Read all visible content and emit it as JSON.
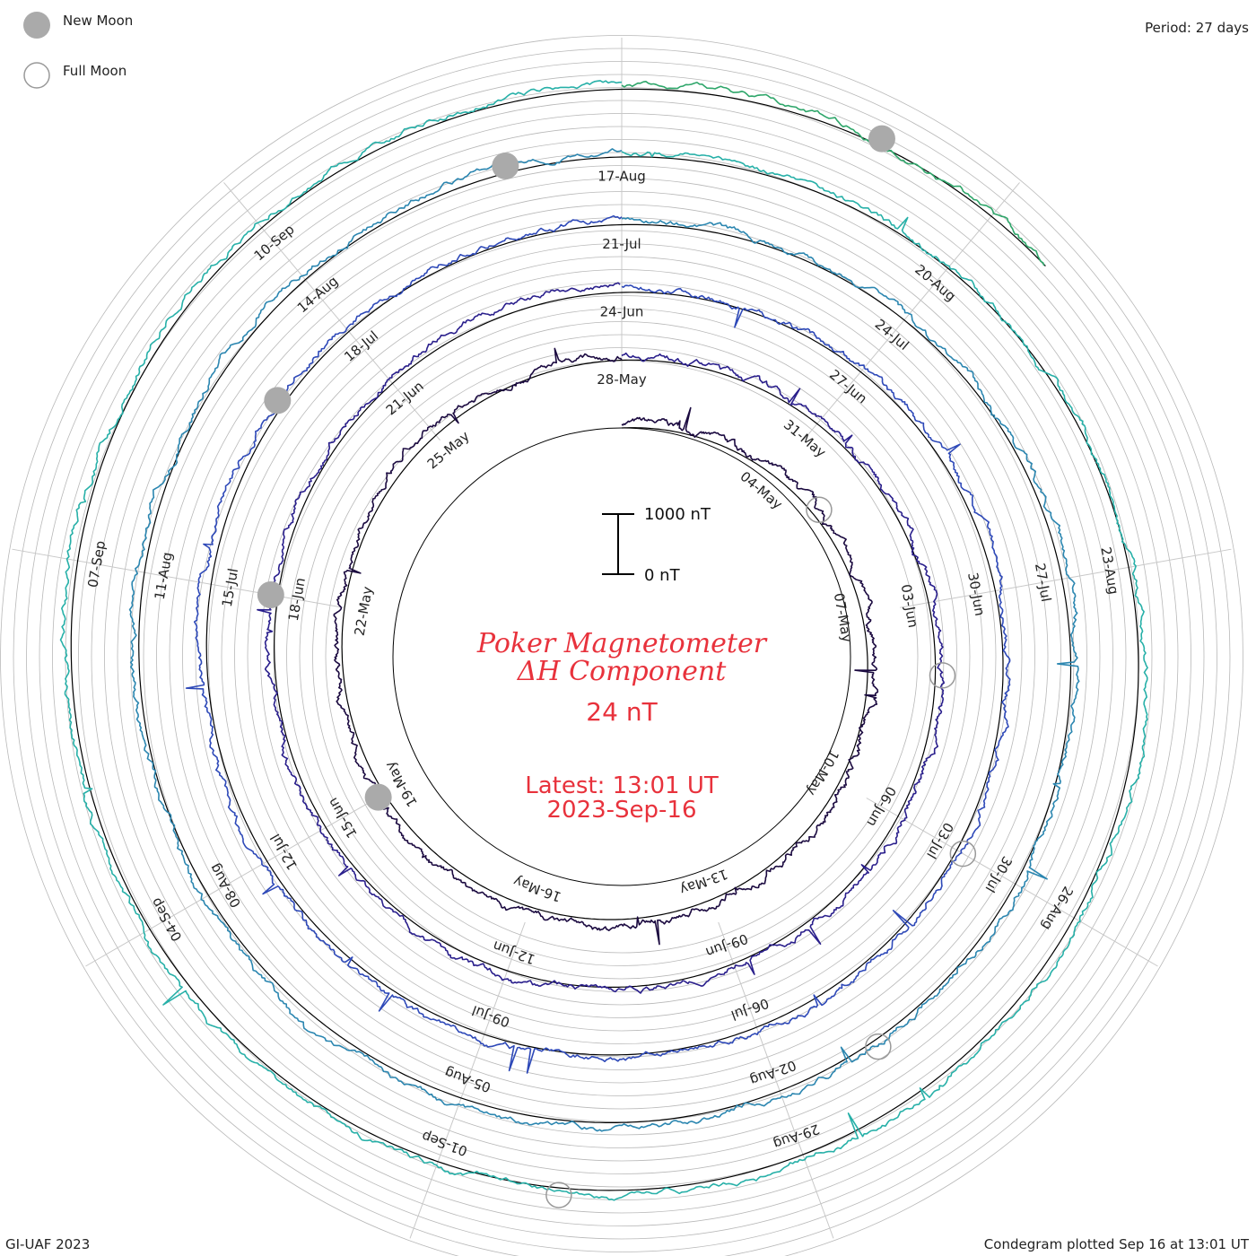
{
  "header": {
    "period": "Period: 27 days"
  },
  "legend": {
    "new_moon": "New Moon",
    "full_moon": "Full Moon"
  },
  "footer": {
    "credit": "GI-UAF 2023",
    "plotted": "Condegram plotted Sep 16 at 13:01 UT"
  },
  "center": {
    "title_line1": "Poker Magnetometer",
    "title_line2": "ΔH Component",
    "current_value": "24 nT",
    "latest_line1": "Latest: 13:01 UT",
    "latest_line2": "2023-Sep-16"
  },
  "colors": {
    "title": "#e8323c",
    "grid": "#b8b8b8",
    "moon_fill": "#aaaaaa",
    "baseline": "#000000"
  },
  "chart_data": {
    "type": "line",
    "subtype": "condegram (spiral time series)",
    "period_days": 27,
    "scale_bar": {
      "top_label": "1000 nT",
      "bottom_label": "0 nT",
      "value_nT": 1000
    },
    "start": "2023-May-01",
    "end": "2023-Sep-16 13:01 UT",
    "date_labels": [
      "04-May",
      "07-May",
      "10-May",
      "13-May",
      "16-May",
      "19-May",
      "22-May",
      "25-May",
      "28-May",
      "31-May",
      "03-Jun",
      "06-Jun",
      "09-Jun",
      "12-Jun",
      "15-Jun",
      "18-Jun",
      "21-Jun",
      "24-Jun",
      "27-Jun",
      "30-Jun",
      "03-Jul",
      "06-Jul",
      "09-Jul",
      "12-Jul",
      "15-Jul",
      "18-Jul",
      "21-Jul",
      "24-Jul",
      "27-Jul",
      "30-Jul",
      "02-Aug",
      "05-Aug",
      "08-Aug",
      "11-Aug",
      "14-Aug",
      "17-Aug",
      "20-Aug",
      "23-Aug",
      "26-Aug",
      "29-Aug",
      "01-Sep",
      "04-Sep",
      "07-Sep",
      "10-Sep"
    ],
    "series": [
      {
        "color": "#1b0a40"
      },
      {
        "color": "#2a1f8c"
      },
      {
        "color": "#2e49b8"
      },
      {
        "color": "#2b86b0"
      },
      {
        "color": "#27b0a8"
      },
      {
        "color": "#2ea66a"
      },
      {
        "color": "#6cbc3c"
      },
      {
        "color": "#a6bf28"
      },
      {
        "color": "#b09424"
      },
      {
        "color": "#c0631c"
      },
      {
        "color": "#b02a1a"
      }
    ],
    "events": [
      {
        "type": "full_moon",
        "date": "2023-May-05"
      },
      {
        "type": "new_moon",
        "date": "2023-May-19"
      },
      {
        "type": "full_moon",
        "date": "2023-Jun-04"
      },
      {
        "type": "new_moon",
        "date": "2023-Jun-18"
      },
      {
        "type": "full_moon",
        "date": "2023-Jul-03"
      },
      {
        "type": "new_moon",
        "date": "2023-Jul-17"
      },
      {
        "type": "full_moon",
        "date": "2023-Aug-01"
      },
      {
        "type": "new_moon",
        "date": "2023-Aug-16"
      },
      {
        "type": "full_moon",
        "date": "2023-Aug-31"
      },
      {
        "type": "new_moon",
        "date": "2023-Sep-15"
      }
    ]
  }
}
